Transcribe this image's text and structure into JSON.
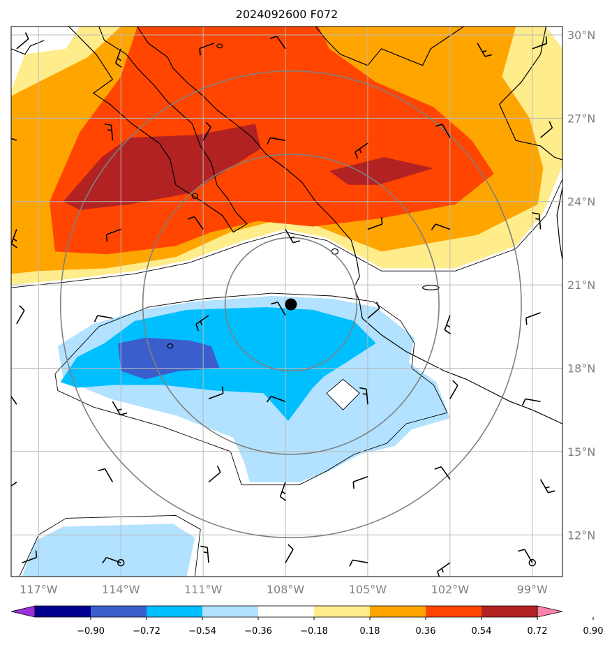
{
  "title": "2024092600 F072",
  "chart_data": {
    "type": "heatmap",
    "title": "2024092600 F072",
    "map": {
      "lon_range": [
        -118,
        -97.9
      ],
      "lat_range": [
        10.5,
        30.3
      ],
      "lat_ticks": [
        {
          "value": 30,
          "label": "30°N"
        },
        {
          "value": 27,
          "label": "27°N"
        },
        {
          "value": 24,
          "label": "24°N"
        },
        {
          "value": 21,
          "label": "21°N"
        },
        {
          "value": 18,
          "label": "18°N"
        },
        {
          "value": 15,
          "label": "15°N"
        },
        {
          "value": 12,
          "label": "12°N"
        }
      ],
      "lon_ticks": [
        {
          "value": -117,
          "label": "117°W"
        },
        {
          "value": -114,
          "label": "114°W"
        },
        {
          "value": -111,
          "label": "111°W"
        },
        {
          "value": -108,
          "label": "108°W"
        },
        {
          "value": -105,
          "label": "105°W"
        },
        {
          "value": -102,
          "label": "102°W"
        },
        {
          "value": -99,
          "label": "99°W"
        }
      ],
      "grid": true,
      "storm_center": {
        "lon": -107.8,
        "lat": 20.3
      },
      "range_rings_deg": [
        2.4,
        5.4,
        8.4
      ]
    },
    "colorbar": {
      "ticks": [
        "−0.90",
        "−0.72",
        "−0.54",
        "−0.36",
        "−0.18",
        "0.18",
        "0.36",
        "0.54",
        "0.72",
        "0.90"
      ],
      "colors": [
        "#9b30d9",
        "#000090",
        "#3a5fcd",
        "#00bfff",
        "#b2e2ff",
        "#ffffff",
        "#ffec8b",
        "#ffa500",
        "#ff4500",
        "#b22222",
        "#ff82ab"
      ],
      "extend": "both"
    },
    "filled_regions": [
      {
        "level": "0.18 to 0.36",
        "color": "#ffec8b",
        "points": [
          [
            -118,
            21
          ],
          [
            -118,
            28
          ],
          [
            -117.5,
            29.3
          ],
          [
            -116,
            29.5
          ],
          [
            -115.5,
            30.3
          ],
          [
            -98.5,
            30.3
          ],
          [
            -97.9,
            29.5
          ],
          [
            -97.9,
            25.3
          ],
          [
            -98.6,
            23.6
          ],
          [
            -99.6,
            22.4
          ],
          [
            -101.8,
            21.6
          ],
          [
            -104.5,
            21.6
          ],
          [
            -106.5,
            22.7
          ],
          [
            -108,
            23
          ],
          [
            -109.5,
            22.6
          ],
          [
            -111.5,
            21.9
          ],
          [
            -113.5,
            21.5
          ],
          [
            -116,
            21.2
          ]
        ]
      },
      {
        "level": "0.36 to 0.54",
        "color": "#ffa500",
        "points": [
          [
            -118,
            21.4
          ],
          [
            -118,
            27.8
          ],
          [
            -115.2,
            29.2
          ],
          [
            -114,
            30.3
          ],
          [
            -99.6,
            30.3
          ],
          [
            -100.1,
            28.5
          ],
          [
            -99.1,
            27
          ],
          [
            -98.6,
            25.2
          ],
          [
            -98.8,
            23.9
          ],
          [
            -101,
            22.8
          ],
          [
            -104.5,
            22.2
          ],
          [
            -106.8,
            23.1
          ],
          [
            -108,
            23.4
          ],
          [
            -110,
            22.9
          ],
          [
            -112,
            22
          ],
          [
            -114.5,
            21.6
          ],
          [
            -117,
            21.5
          ]
        ]
      },
      {
        "level": "0.54 to 0.72",
        "color": "#ff4500",
        "points": [
          [
            -116.4,
            22.2
          ],
          [
            -116.6,
            24
          ],
          [
            -115.5,
            26.5
          ],
          [
            -114,
            28.5
          ],
          [
            -113.4,
            30.3
          ],
          [
            -106.8,
            30.3
          ],
          [
            -106.4,
            29.5
          ],
          [
            -104.7,
            28.3
          ],
          [
            -102.6,
            27.4
          ],
          [
            -101.2,
            26.2
          ],
          [
            -100.4,
            25
          ],
          [
            -101.8,
            23.9
          ],
          [
            -104.5,
            23.4
          ],
          [
            -107,
            23.1
          ],
          [
            -109,
            23.3
          ],
          [
            -110.7,
            22.9
          ],
          [
            -112,
            22.4
          ],
          [
            -114.5,
            22.1
          ]
        ]
      },
      {
        "level": "0.72 to 0.90",
        "color": "#b22222",
        "points": [
          [
            -116.1,
            24
          ],
          [
            -114.7,
            25.6
          ],
          [
            -113.7,
            26.3
          ],
          [
            -111.2,
            26.4
          ],
          [
            -109.1,
            26.8
          ],
          [
            -108.9,
            25.9
          ],
          [
            -110.2,
            25.1
          ],
          [
            -111.5,
            24.3
          ],
          [
            -113.7,
            23.9
          ],
          [
            -115.5,
            23.7
          ]
        ]
      },
      {
        "level": "0.72 to 0.90",
        "color": "#b22222",
        "points": [
          [
            -106.4,
            25.1
          ],
          [
            -104.4,
            25.6
          ],
          [
            -102.6,
            25.2
          ],
          [
            -103.6,
            24.9
          ],
          [
            -104.6,
            24.6
          ],
          [
            -105.7,
            24.6
          ]
        ]
      },
      {
        "level": "-0.36 to -0.18",
        "color": "#b2e2ff",
        "points": [
          [
            -116.3,
            18.8
          ],
          [
            -115,
            19.6
          ],
          [
            -113.2,
            20.1
          ],
          [
            -111.3,
            20.4
          ],
          [
            -108.5,
            20.6
          ],
          [
            -106.3,
            20.5
          ],
          [
            -104.7,
            20.2
          ],
          [
            -103.3,
            19.1
          ],
          [
            -103.5,
            18.2
          ],
          [
            -102.5,
            17.5
          ],
          [
            -102,
            16.2
          ],
          [
            -103.4,
            15.8
          ],
          [
            -104,
            15.2
          ],
          [
            -105.3,
            14.9
          ],
          [
            -106.4,
            14.3
          ],
          [
            -107.5,
            13.9
          ],
          [
            -109.3,
            13.9
          ],
          [
            -109.5,
            14.6
          ],
          [
            -109.9,
            15.5
          ],
          [
            -112,
            16.3
          ],
          [
            -114.4,
            16.9
          ],
          [
            -116.1,
            17.6
          ]
        ]
      },
      {
        "level": "-0.54 to -0.36",
        "color": "#00bfff",
        "points": [
          [
            -116.2,
            17.5
          ],
          [
            -115.6,
            18.4
          ],
          [
            -114.6,
            18.9
          ],
          [
            -113.5,
            19.7
          ],
          [
            -111.6,
            20.1
          ],
          [
            -108.7,
            20.2
          ],
          [
            -107,
            20.1
          ],
          [
            -105.5,
            19.7
          ],
          [
            -104.7,
            18.9
          ],
          [
            -105.8,
            18.2
          ],
          [
            -106.6,
            17.7
          ],
          [
            -107,
            17.3
          ],
          [
            -107.9,
            16.1
          ],
          [
            -108.8,
            17.1
          ],
          [
            -110.6,
            17.2
          ],
          [
            -112.5,
            17.4
          ],
          [
            -114.2,
            17.4
          ],
          [
            -115.6,
            17.3
          ]
        ]
      },
      {
        "level": "-0.72 to -0.54",
        "color": "#3a5fcd",
        "points": [
          [
            -114.1,
            18.9
          ],
          [
            -113.1,
            19.1
          ],
          [
            -111.5,
            19
          ],
          [
            -110.7,
            18.8
          ],
          [
            -110.4,
            18
          ],
          [
            -111.9,
            17.9
          ],
          [
            -113.1,
            17.6
          ],
          [
            -114,
            17.9
          ]
        ]
      },
      {
        "level": "-0.36 to -0.18",
        "color": "#b2e2ff",
        "points": [
          [
            -117.6,
            10.5
          ],
          [
            -117.1,
            11.8
          ],
          [
            -116.1,
            12.3
          ],
          [
            -112.1,
            12.4
          ],
          [
            -111.3,
            11.9
          ],
          [
            -111.6,
            10.5
          ]
        ]
      }
    ],
    "wind_barbs": [
      [
        -117.8,
        29.5
      ],
      [
        -114,
        29.5
      ],
      [
        -110.6,
        29.7
      ],
      [
        -108,
        29.5
      ],
      [
        -101,
        29.7
      ],
      [
        -99,
        29.5
      ],
      [
        -117.8,
        26.2
      ],
      [
        -114.3,
        26.2
      ],
      [
        -111,
        26.2
      ],
      [
        -108,
        26.2
      ],
      [
        -105,
        26.1
      ],
      [
        -102,
        26.3
      ],
      [
        -98.7,
        26.3
      ],
      [
        -117.8,
        23
      ],
      [
        -114,
        23
      ],
      [
        -111,
        23
      ],
      [
        -108,
        23
      ],
      [
        -105,
        23
      ],
      [
        -102,
        23
      ],
      [
        -98.7,
        23
      ],
      [
        -117.8,
        19.6
      ],
      [
        -114.3,
        19.8
      ],
      [
        -110.8,
        19.9
      ],
      [
        -108,
        19.9
      ],
      [
        -105,
        19.8
      ],
      [
        -102,
        19.9
      ],
      [
        -98.7,
        20
      ],
      [
        -117.8,
        16.7
      ],
      [
        -114.3,
        16.8
      ],
      [
        -110.8,
        16.9
      ],
      [
        -108,
        16.8
      ],
      [
        -105,
        16.7
      ],
      [
        -102,
        16.9
      ],
      [
        -98.7,
        16.8
      ],
      [
        -117.8,
        13.9
      ],
      [
        -114.3,
        13.9
      ],
      [
        -110.8,
        13.9
      ],
      [
        -108,
        13.9
      ],
      [
        -105,
        14.1
      ],
      [
        -102,
        14
      ],
      [
        -98.7,
        14
      ],
      [
        -117.6,
        11
      ],
      [
        -114,
        11
      ],
      [
        -110.8,
        11
      ],
      [
        -108,
        11
      ],
      [
        -105,
        11
      ],
      [
        -102,
        11
      ],
      [
        -99,
        11
      ]
    ]
  }
}
